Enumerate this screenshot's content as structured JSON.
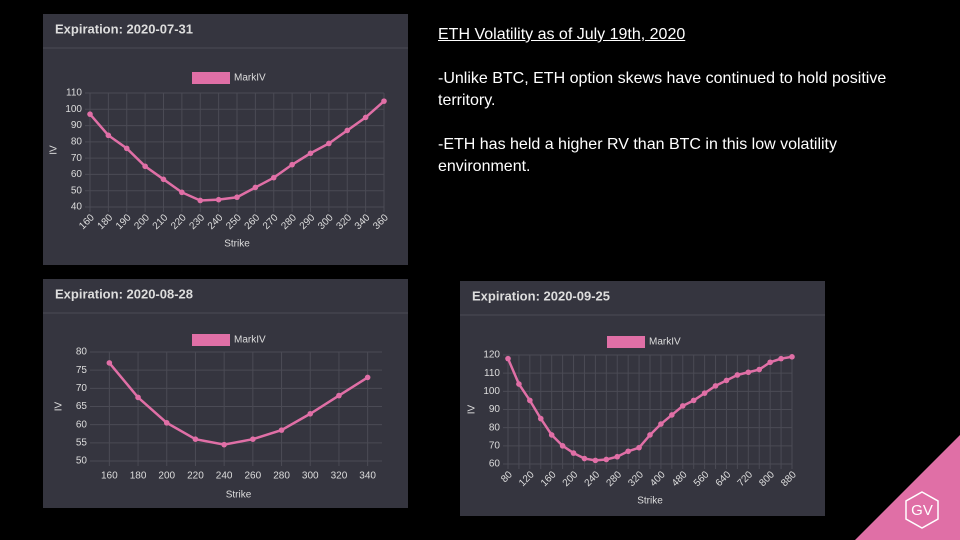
{
  "slide": {
    "heading": "ETH Volatility as of July 19th, 2020",
    "bullets": [
      "-Unlike BTC, ETH option skews have continued to hold positive territory.",
      "-ETH has held a higher RV than BTC in this low volatility environment."
    ],
    "logo": "GV"
  },
  "chart_data": [
    {
      "type": "line",
      "title": "Expiration: 2020-07-31",
      "x_label": "Strike",
      "y_label": "IV",
      "categories": [
        "160",
        "180",
        "190",
        "200",
        "210",
        "220",
        "230",
        "240",
        "250",
        "260",
        "270",
        "280",
        "290",
        "300",
        "320",
        "340",
        "360"
      ],
      "series": [
        {
          "name": "MarkIV",
          "color": "#e06fa6",
          "values": [
            97,
            84,
            76,
            65,
            57,
            49,
            44,
            44.5,
            46,
            52,
            58,
            66,
            73,
            79,
            87,
            95,
            105
          ]
        }
      ],
      "ylim": [
        40,
        110
      ],
      "yticks": [
        40,
        50,
        60,
        70,
        80,
        90,
        100,
        110
      ],
      "grid": true,
      "legend": "top"
    },
    {
      "type": "line",
      "title": "Expiration: 2020-08-28",
      "x_label": "Strike",
      "y_label": "IV",
      "categories": [
        "160",
        "180",
        "200",
        "220",
        "240",
        "260",
        "280",
        "300",
        "320",
        "340"
      ],
      "series": [
        {
          "name": "MarkIV",
          "color": "#e06fa6",
          "values": [
            77,
            67.5,
            60.5,
            56,
            54.5,
            56,
            58.5,
            63,
            68,
            73
          ]
        }
      ],
      "ylim": [
        50,
        80
      ],
      "yticks": [
        50,
        55,
        60,
        65,
        70,
        75,
        80
      ],
      "grid": true,
      "legend": "top"
    },
    {
      "type": "line",
      "title": "Expiration: 2020-09-25",
      "x_label": "Strike",
      "y_label": "IV",
      "categories": [
        "80",
        null,
        "120",
        null,
        "160",
        null,
        "200",
        null,
        "240",
        null,
        "280",
        null,
        "320",
        null,
        "400",
        null,
        "480",
        null,
        "560",
        null,
        "640",
        null,
        "720",
        null,
        "800",
        null,
        "880"
      ],
      "series": [
        {
          "name": "MarkIV",
          "color": "#e06fa6",
          "values": [
            118,
            104,
            95,
            85,
            76,
            70,
            66,
            63,
            62,
            62.5,
            64,
            67,
            69,
            76,
            82,
            87,
            92,
            95,
            99,
            103,
            106,
            109,
            110.5,
            112,
            116,
            118,
            119
          ]
        }
      ],
      "ylim": [
        60,
        120
      ],
      "yticks": [
        60,
        70,
        80,
        90,
        100,
        110,
        120
      ],
      "grid": true,
      "legend": "top"
    }
  ]
}
